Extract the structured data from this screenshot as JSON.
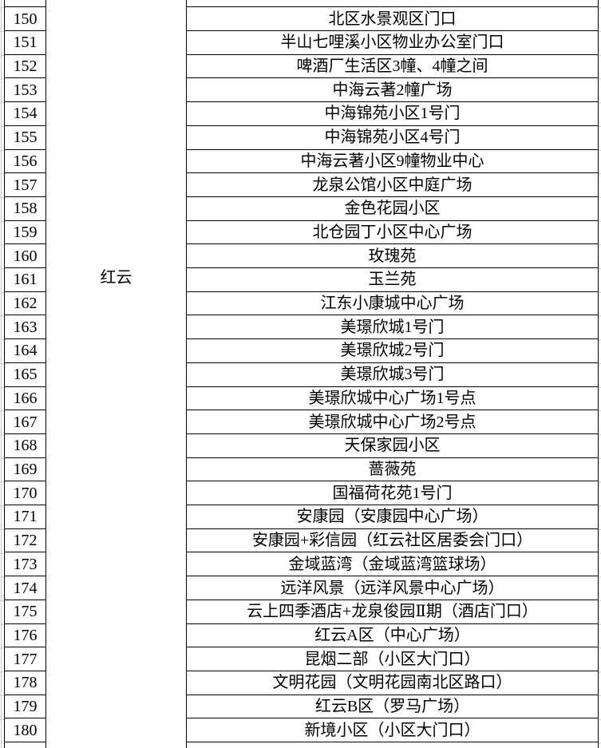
{
  "table": {
    "group_label": "红云",
    "rows": [
      {
        "num": "150",
        "location": "北区水景观区门口"
      },
      {
        "num": "151",
        "location": "半山七哩溪小区物业办公室门口"
      },
      {
        "num": "152",
        "location": "啤酒厂生活区3幢、4幢之间"
      },
      {
        "num": "153",
        "location": "中海云著2幢广场"
      },
      {
        "num": "154",
        "location": "中海锦苑小区1号门"
      },
      {
        "num": "155",
        "location": "中海锦苑小区4号门"
      },
      {
        "num": "156",
        "location": "中海云著小区9幢物业中心"
      },
      {
        "num": "157",
        "location": "龙泉公馆小区中庭广场"
      },
      {
        "num": "158",
        "location": "金色花园小区"
      },
      {
        "num": "159",
        "location": "北仓园丁小区中心广场"
      },
      {
        "num": "160",
        "location": "玫瑰苑"
      },
      {
        "num": "161",
        "location": "玉兰苑"
      },
      {
        "num": "162",
        "location": "江东小康城中心广场"
      },
      {
        "num": "163",
        "location": "美璟欣城1号门"
      },
      {
        "num": "164",
        "location": "美璟欣城2号门"
      },
      {
        "num": "165",
        "location": "美璟欣城3号门"
      },
      {
        "num": "166",
        "location": "美璟欣城中心广场1号点"
      },
      {
        "num": "167",
        "location": "美璟欣城中心广场2号点"
      },
      {
        "num": "168",
        "location": "天保家园小区"
      },
      {
        "num": "169",
        "location": "蔷薇苑"
      },
      {
        "num": "170",
        "location": "国福荷花苑1号门"
      },
      {
        "num": "171",
        "location": "安康园（安康园中心广场）"
      },
      {
        "num": "172",
        "location": "安康园+彩信园（红云社区居委会门口）"
      },
      {
        "num": "173",
        "location": "金域蓝湾（金域蓝湾篮球场）"
      },
      {
        "num": "174",
        "location": "远洋风景（远洋风景中心广场）"
      },
      {
        "num": "175",
        "location": "云上四季酒店+龙泉俊园Ⅱ期（酒店门口）"
      },
      {
        "num": "176",
        "location": "红云A区（中心广场）"
      },
      {
        "num": "177",
        "location": "昆烟二部（小区大门口）"
      },
      {
        "num": "178",
        "location": "文明花园（文明花园南北区路口）"
      },
      {
        "num": "179",
        "location": "红云B区（罗马广场）"
      },
      {
        "num": "180",
        "location": "新境小区（小区大门口）"
      }
    ]
  },
  "colors": {
    "table_border": "#000000",
    "gridline": "#c6cad2",
    "text": "#000000",
    "background": "#ffffff"
  }
}
